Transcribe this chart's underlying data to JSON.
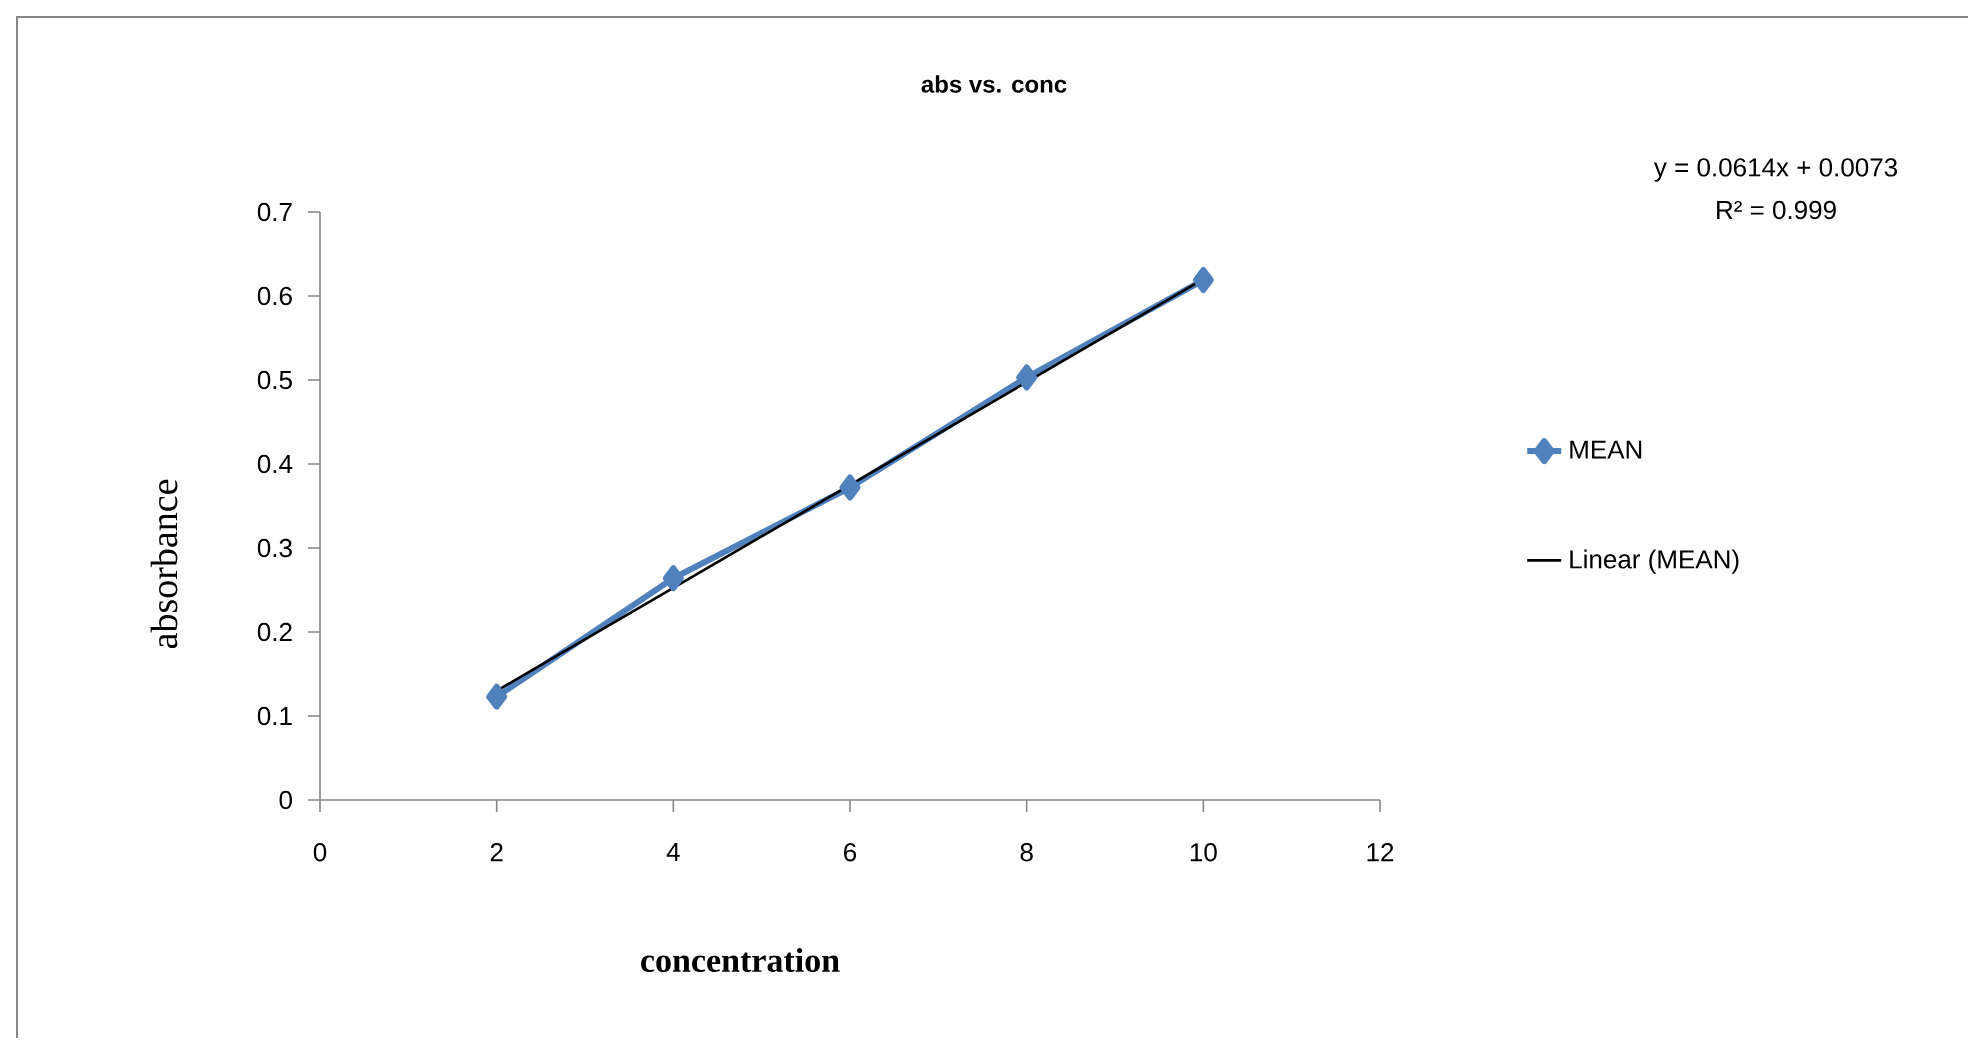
{
  "chart_data": {
    "type": "line",
    "title": "abs vs. conc",
    "xlabel": "concentration",
    "ylabel": "absorbance",
    "annotations": [
      "y = 0.0614x + 0.0073",
      "R² = 0.999"
    ],
    "x": [
      2,
      4,
      6,
      8,
      10
    ],
    "series": [
      {
        "name": "MEAN",
        "color": "#4f81bd",
        "values": [
          0.123,
          0.264,
          0.372,
          0.503,
          0.619
        ],
        "marker": "diamond"
      },
      {
        "name": "Linear (MEAN)",
        "color": "#000000",
        "type": "line",
        "x": [
          2,
          10
        ],
        "values": [
          0.13,
          0.62
        ],
        "marker": "none"
      }
    ],
    "xlim": [
      0,
      12
    ],
    "xticks": [
      0,
      2,
      4,
      6,
      8,
      10,
      12
    ],
    "ylim": [
      0,
      0.7
    ],
    "yticks": [
      0,
      0.1,
      0.2,
      0.3,
      0.4,
      0.5,
      0.6,
      0.7
    ],
    "legend": "right",
    "grid": false
  }
}
